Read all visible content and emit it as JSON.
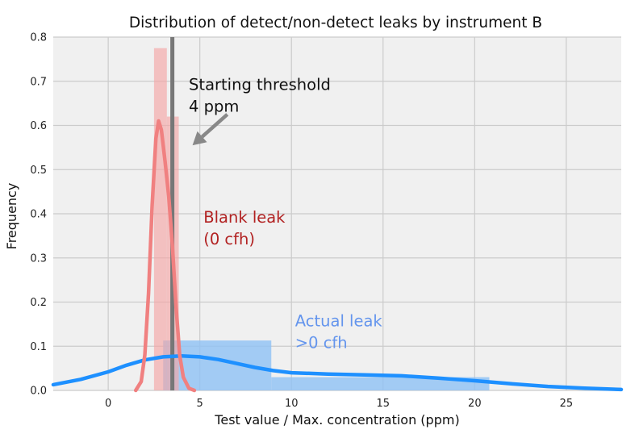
{
  "chart_data": {
    "type": "histogram+kde",
    "title": "Distribution of detect/non-detect leaks by instrument B",
    "xlabel": "Test value / Max. concentration (ppm)",
    "ylabel": "Frequency",
    "xlim": [
      -3,
      28
    ],
    "ylim": [
      0,
      0.8
    ],
    "xticks": [
      0,
      5,
      10,
      15,
      20,
      25
    ],
    "yticks": [
      0.0,
      0.1,
      0.2,
      0.3,
      0.4,
      0.5,
      0.6,
      0.7,
      0.8
    ],
    "grid": true,
    "threshold": {
      "x": 3.5,
      "color": "#777777"
    },
    "series": [
      {
        "id": "blank",
        "color": "#f08080",
        "bar_color": "#f4a6a6",
        "bins": [
          {
            "x0": 2.5,
            "x1": 3.2,
            "height": 0.775
          },
          {
            "x0": 3.2,
            "x1": 3.85,
            "height": 0.62
          }
        ],
        "kde": [
          [
            1.5,
            0.0
          ],
          [
            1.8,
            0.02
          ],
          [
            2.0,
            0.08
          ],
          [
            2.2,
            0.22
          ],
          [
            2.4,
            0.42
          ],
          [
            2.6,
            0.57
          ],
          [
            2.75,
            0.61
          ],
          [
            2.9,
            0.59
          ],
          [
            3.1,
            0.52
          ],
          [
            3.3,
            0.44
          ],
          [
            3.5,
            0.33
          ],
          [
            3.7,
            0.19
          ],
          [
            3.9,
            0.08
          ],
          [
            4.1,
            0.03
          ],
          [
            4.4,
            0.005
          ],
          [
            4.7,
            0.0
          ]
        ]
      },
      {
        "id": "actual",
        "color": "#1e90ff",
        "bar_color": "#8ec2f5",
        "bins": [
          {
            "x0": 3.0,
            "x1": 8.9,
            "height": 0.113
          },
          {
            "x0": 8.9,
            "x1": 20.8,
            "height": 0.03
          }
        ],
        "kde": [
          [
            -3,
            0.013
          ],
          [
            -1.5,
            0.025
          ],
          [
            0,
            0.042
          ],
          [
            1,
            0.057
          ],
          [
            2,
            0.069
          ],
          [
            3,
            0.076
          ],
          [
            4,
            0.078
          ],
          [
            5,
            0.076
          ],
          [
            6,
            0.07
          ],
          [
            7,
            0.061
          ],
          [
            8,
            0.052
          ],
          [
            9,
            0.045
          ],
          [
            10,
            0.04
          ],
          [
            12,
            0.037
          ],
          [
            14,
            0.035
          ],
          [
            16,
            0.033
          ],
          [
            18,
            0.028
          ],
          [
            20,
            0.022
          ],
          [
            22,
            0.015
          ],
          [
            24,
            0.009
          ],
          [
            26,
            0.005
          ],
          [
            28,
            0.002
          ]
        ]
      }
    ],
    "annotations": [
      {
        "id": "threshold",
        "lines": [
          "Starting threshold",
          "4 ppm"
        ],
        "x": 4.4,
        "y": 0.68,
        "color": "#111111",
        "arrow": {
          "from": [
            6.5,
            0.625
          ],
          "to": [
            4.6,
            0.555
          ],
          "color": "#888888"
        }
      },
      {
        "id": "blank",
        "lines": [
          "Blank leak",
          "(0 cfh)"
        ],
        "x": 5.2,
        "y": 0.38,
        "color": "#b22222"
      },
      {
        "id": "actual",
        "lines": [
          "Actual leak",
          ">0 cfh"
        ],
        "x": 10.2,
        "y": 0.145,
        "color": "#6495ed"
      }
    ]
  }
}
